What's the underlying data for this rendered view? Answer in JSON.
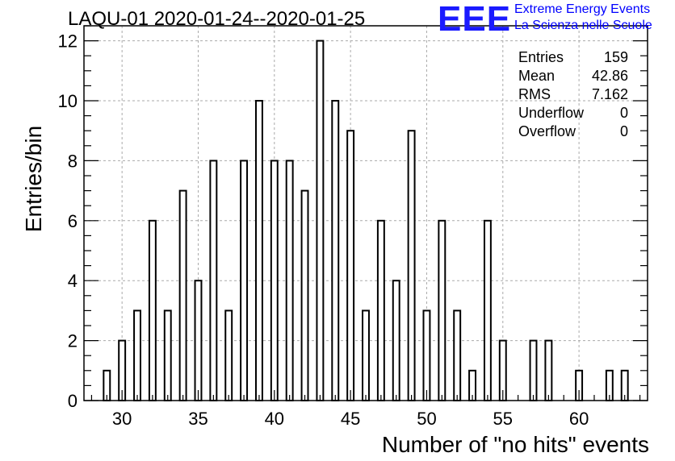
{
  "header": {
    "title": "LAQU-01 2020-01-24--2020-01-25",
    "logo": "EEE",
    "logo_line1": "Extreme Energy Events",
    "logo_line2": "La Scienza nelle Scuole"
  },
  "stats": [
    {
      "label": "Entries",
      "value": "159"
    },
    {
      "label": "Mean",
      "value": "42.86"
    },
    {
      "label": "RMS",
      "value": "7.162"
    },
    {
      "label": "Underflow",
      "value": "0"
    },
    {
      "label": "Overflow",
      "value": "0"
    }
  ],
  "chart_data": {
    "type": "bar",
    "title": "LAQU-01 2020-01-24--2020-01-25",
    "xlabel": "Number of \"no hits\" events",
    "ylabel": "Entries/bin",
    "xlim": [
      27.5,
      64.5
    ],
    "ylim": [
      0,
      12.5
    ],
    "grid": true,
    "legend": "top-right",
    "x_ticks": [
      30,
      35,
      40,
      45,
      50,
      55,
      60
    ],
    "y_ticks": [
      0,
      2,
      4,
      6,
      8,
      10,
      12
    ],
    "x": [
      29,
      30,
      31,
      32,
      33,
      34,
      35,
      36,
      37,
      38,
      39,
      40,
      41,
      42,
      43,
      44,
      45,
      46,
      47,
      48,
      49,
      50,
      51,
      52,
      53,
      54,
      55,
      57,
      58,
      60,
      62,
      63
    ],
    "values": [
      1,
      2,
      3,
      6,
      3,
      7,
      4,
      8,
      3,
      8,
      10,
      8,
      8,
      7,
      12,
      10,
      9,
      3,
      6,
      4,
      9,
      3,
      6,
      3,
      1,
      6,
      2,
      2,
      2,
      1,
      1,
      1
    ]
  }
}
